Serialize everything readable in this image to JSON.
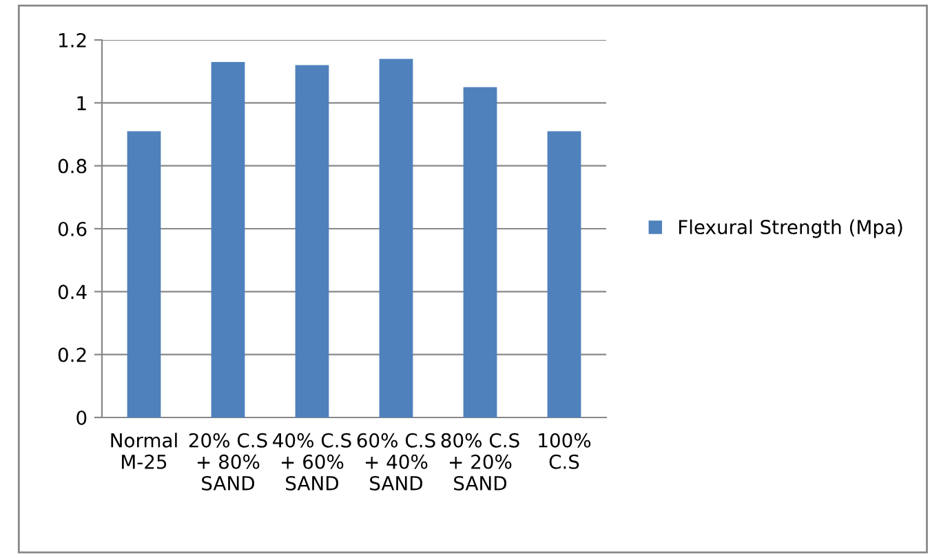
{
  "chart_data": {
    "type": "bar",
    "categories": [
      "Normal\nM-25",
      "20% C.S\n+ 80%\nSAND",
      "40% C.S\n+ 60%\nSAND",
      "60% C.S\n+ 40%\nSAND",
      "80% C.S\n+ 20%\nSAND",
      "100%\nC.S"
    ],
    "series": [
      {
        "name": "Flexural Strength (Mpa)",
        "color": "#4f81bd",
        "values": [
          0.91,
          1.13,
          1.12,
          1.14,
          1.05,
          0.91
        ]
      }
    ],
    "ylim": [
      0,
      1.2
    ],
    "yticks": [
      0,
      0.2,
      0.4,
      0.6,
      0.8,
      {
        "value": 1,
        "label": "1"
      },
      1.2
    ],
    "grid": "y",
    "legend": "right"
  }
}
